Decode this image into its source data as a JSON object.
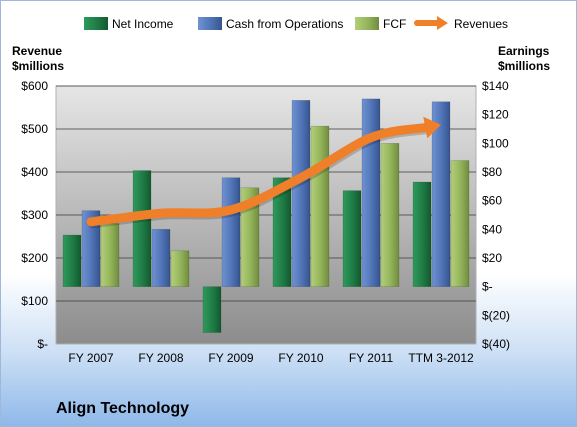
{
  "chart_data": {
    "type": "bar",
    "title": "Align Technology",
    "categories": [
      "FY 2007",
      "FY 2008",
      "FY 2009",
      "FY 2010",
      "FY 2011",
      "TTM 3-2012"
    ],
    "left_axis": {
      "title_line1": "Revenue",
      "title_line2": "$millions",
      "ylim": [
        0,
        600
      ],
      "ticks": [
        0,
        100,
        200,
        300,
        400,
        500,
        600
      ],
      "tick_labels": [
        "$-",
        "$100",
        "$200",
        "$300",
        "$400",
        "$500",
        "$600"
      ]
    },
    "right_axis": {
      "title_line1": "Earnings",
      "title_line2": "$millions",
      "ylim": [
        -40,
        140
      ],
      "ticks": [
        -40,
        -20,
        0,
        20,
        40,
        60,
        80,
        100,
        120,
        140
      ],
      "tick_labels": [
        "$(40)",
        "$(20)",
        "$-",
        "$20",
        "$40",
        "$60",
        "$80",
        "$100",
        "$120",
        "$140"
      ]
    },
    "series": [
      {
        "name": "Net Income",
        "type": "bar",
        "axis": "right",
        "color": "#1e7b45",
        "values": [
          36,
          81,
          -32,
          76,
          67,
          73
        ]
      },
      {
        "name": "Cash from Operations",
        "type": "bar",
        "axis": "right",
        "color": "#4f73b5",
        "values": [
          53,
          40,
          76,
          130,
          131,
          129
        ]
      },
      {
        "name": "FCF",
        "type": "bar",
        "axis": "right",
        "color": "#93b35a",
        "values": [
          44,
          25,
          69,
          112,
          100,
          88
        ]
      },
      {
        "name": "Revenues",
        "type": "line",
        "axis": "left",
        "color": "#f07f2a",
        "values": [
          284,
          304,
          312,
          387,
          480,
          510
        ]
      }
    ],
    "legend_position": "top",
    "grid": true
  }
}
